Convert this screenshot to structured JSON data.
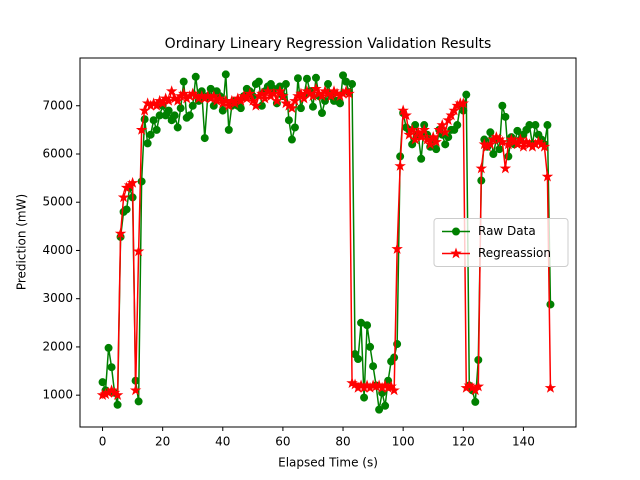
{
  "chart_data": {
    "type": "line",
    "title": "Ordinary Lineary Regression Validation Results",
    "xlabel": "Elapsed Time (s)",
    "ylabel": "Prediction (mW)",
    "x": [
      0,
      1,
      2,
      3,
      4,
      5,
      6,
      7,
      8,
      9,
      10,
      11,
      12,
      13,
      14,
      15,
      16,
      17,
      18,
      19,
      20,
      21,
      22,
      23,
      24,
      25,
      26,
      27,
      28,
      29,
      30,
      31,
      32,
      33,
      34,
      35,
      36,
      37,
      38,
      39,
      40,
      41,
      42,
      43,
      44,
      45,
      46,
      47,
      48,
      49,
      50,
      51,
      52,
      53,
      54,
      55,
      56,
      57,
      58,
      59,
      60,
      61,
      62,
      63,
      64,
      65,
      66,
      67,
      68,
      69,
      70,
      71,
      72,
      73,
      74,
      75,
      76,
      77,
      78,
      79,
      80,
      81,
      82,
      83,
      84,
      85,
      86,
      87,
      88,
      89,
      90,
      91,
      92,
      93,
      94,
      95,
      96,
      97,
      98,
      99,
      100,
      101,
      102,
      103,
      104,
      105,
      106,
      107,
      108,
      109,
      110,
      111,
      112,
      113,
      114,
      115,
      116,
      117,
      118,
      119,
      120,
      121,
      122,
      123,
      124,
      125,
      126,
      127,
      128,
      129,
      130,
      131,
      132,
      133,
      134,
      135,
      136,
      137,
      138,
      139,
      140,
      141,
      142,
      143,
      144,
      145,
      146,
      147,
      148,
      149
    ],
    "series": [
      {
        "name": "Raw Data",
        "color": "#008000",
        "marker": "circle",
        "values": [
          1270,
          1100,
          1980,
          1580,
          1050,
          800,
          4280,
          4800,
          4850,
          5300,
          5100,
          1300,
          870,
          5430,
          6720,
          6220,
          6400,
          6700,
          6500,
          6800,
          7000,
          6800,
          6900,
          6700,
          6800,
          6550,
          6950,
          7500,
          6750,
          6800,
          7000,
          7600,
          7100,
          7300,
          6330,
          7200,
          7350,
          7000,
          7300,
          7200,
          6900,
          7650,
          6500,
          7000,
          7100,
          7000,
          6950,
          7200,
          7350,
          7300,
          7200,
          7450,
          7500,
          7000,
          7300,
          7400,
          7450,
          7350,
          7050,
          7400,
          7200,
          7450,
          6700,
          6300,
          6550,
          7570,
          6950,
          7200,
          7560,
          7300,
          6980,
          7580,
          7200,
          6850,
          7100,
          7450,
          7200,
          7100,
          7100,
          7050,
          7630,
          7500,
          7280,
          7450,
          1850,
          1750,
          2500,
          950,
          2450,
          2000,
          1600,
          1200,
          700,
          1050,
          780,
          1300,
          1700,
          1780,
          2060,
          5950,
          6850,
          6550,
          6500,
          6200,
          6600,
          6400,
          5900,
          6600,
          6400,
          6150,
          6300,
          6100,
          6500,
          6400,
          6200,
          6350,
          6500,
          6500,
          6600,
          7000,
          6900,
          7230,
          1200,
          1100,
          860,
          1730,
          5450,
          6300,
          6150,
          6450,
          6000,
          6300,
          6100,
          7000,
          6770,
          5950,
          6350,
          6200,
          6480,
          6300,
          6400,
          6500,
          6600,
          6200,
          6600,
          6400,
          6300,
          6200,
          6600,
          2880
        ]
      },
      {
        "name": "Regreassion",
        "color": "#ff0000",
        "marker": "star",
        "values": [
          1000,
          1020,
          1050,
          1100,
          1050,
          1000,
          4350,
          5100,
          5300,
          5350,
          5400,
          1100,
          3980,
          6500,
          6900,
          7050,
          7000,
          7050,
          7000,
          7100,
          7050,
          7150,
          7100,
          7300,
          7150,
          7100,
          7200,
          7250,
          7150,
          7200,
          7250,
          7200,
          7150,
          7200,
          7150,
          7200,
          7150,
          7200,
          7100,
          7150,
          7050,
          7100,
          7000,
          7100,
          7050,
          7150,
          7100,
          7200,
          7150,
          7250,
          7100,
          7000,
          7200,
          7250,
          7150,
          7300,
          7200,
          7250,
          7100,
          7300,
          7200,
          7050,
          7000,
          6950,
          7100,
          7200,
          7250,
          7150,
          7300,
          7250,
          7200,
          7350,
          7250,
          7200,
          7300,
          7250,
          7200,
          7300,
          7250,
          7200,
          7250,
          7300,
          7250,
          1250,
          1220,
          1150,
          1200,
          1150,
          1200,
          1150,
          1200,
          1180,
          1200,
          1150,
          1200,
          1150,
          1180,
          1100,
          4030,
          5750,
          6900,
          6800,
          6400,
          6500,
          6300,
          6450,
          6350,
          6500,
          6300,
          6200,
          6350,
          6250,
          6500,
          6600,
          6450,
          6700,
          6800,
          6900,
          7000,
          7050,
          7050,
          1150,
          1200,
          1150,
          1100,
          1180,
          5700,
          6200,
          6150,
          6200,
          6300,
          6350,
          6300,
          6250,
          5700,
          6200,
          6300,
          6250,
          6200,
          6300,
          6150,
          6250,
          6200,
          6150,
          6200,
          6250,
          6200,
          6150,
          5530,
          1150
        ]
      }
    ],
    "xlim": [
      -7.5,
      157.5
    ],
    "xticks": [
      0,
      20,
      40,
      60,
      80,
      100,
      120,
      140
    ],
    "ylim": [
      340,
      7990
    ],
    "yticks": [
      1000,
      2000,
      3000,
      4000,
      5000,
      6000,
      7000
    ],
    "legend": "center right",
    "grid": false
  }
}
